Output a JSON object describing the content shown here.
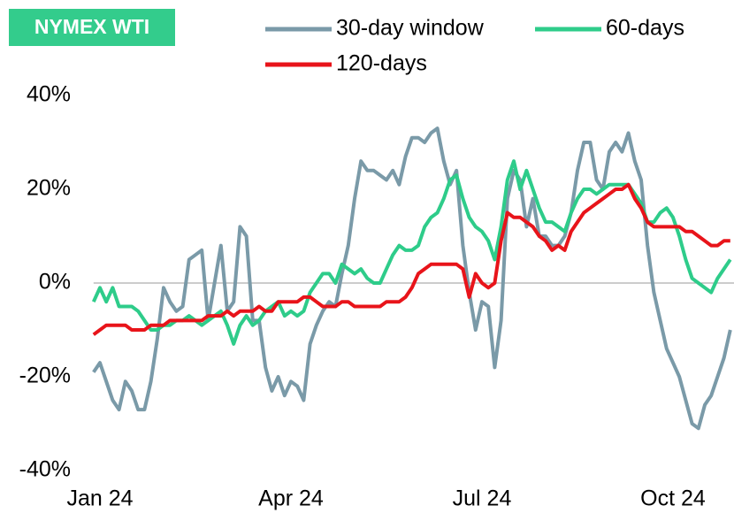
{
  "chart_data": {
    "type": "line",
    "title": "NYMEX WTI",
    "categories": [
      null,
      "Jan 24",
      null,
      null,
      null,
      null,
      null,
      null,
      null,
      null,
      null,
      null,
      null,
      null,
      null,
      null,
      null,
      null,
      null,
      null,
      null,
      null,
      null,
      null,
      null,
      null,
      null,
      null,
      null,
      null,
      null,
      "Apr 24",
      null,
      null,
      null,
      null,
      null,
      null,
      null,
      null,
      null,
      null,
      null,
      null,
      null,
      null,
      null,
      null,
      null,
      null,
      null,
      null,
      null,
      null,
      null,
      null,
      null,
      null,
      null,
      null,
      null,
      "Jul 24",
      null,
      null,
      null,
      null,
      null,
      null,
      null,
      null,
      null,
      null,
      null,
      null,
      null,
      null,
      null,
      null,
      null,
      null,
      null,
      null,
      null,
      null,
      null,
      null,
      null,
      null,
      null,
      null,
      null,
      "Oct 24",
      null,
      null,
      null,
      null,
      null,
      null,
      null,
      null,
      null
    ],
    "series": [
      {
        "name": "30-day window",
        "color": "#7a9aa8",
        "values": [
          -19,
          -17,
          -21,
          -25,
          -27,
          -21,
          -23,
          -27,
          -27,
          -21,
          -12,
          -1,
          -4,
          -6,
          -5,
          5,
          6,
          7,
          -8,
          0,
          8,
          -6,
          -4,
          12,
          10,
          -8,
          -8,
          -18,
          -23,
          -20,
          -24,
          -21,
          -22,
          -25,
          -13,
          -9,
          -6,
          -4,
          -5,
          2,
          8,
          18,
          26,
          24,
          24,
          23,
          22,
          24,
          21,
          27,
          31,
          31,
          30,
          32,
          33,
          26,
          21,
          24,
          8,
          -2,
          -10,
          -4,
          -5,
          -18,
          -8,
          18,
          24,
          22,
          12,
          18,
          10,
          10,
          8,
          8,
          10,
          15,
          24,
          30,
          30,
          22,
          20,
          28,
          30,
          28,
          32,
          26,
          22,
          8,
          -2,
          -8,
          -14,
          -17,
          -20,
          -25,
          -30,
          -31,
          -26,
          -24,
          -20,
          -16,
          -10
        ]
      },
      {
        "name": "60-days",
        "color": "#2ecc8a",
        "values": [
          -4,
          -1,
          -4,
          -1,
          -5,
          -5,
          -5,
          -6,
          -8,
          -10,
          -10,
          -9,
          -9,
          -8,
          -8,
          -7,
          -8,
          -9,
          -8,
          -7,
          -6,
          -9,
          -13,
          -9,
          -7,
          -9,
          -8,
          -6,
          -5,
          -4,
          -7,
          -6,
          -7,
          -6,
          -2,
          0,
          2,
          2,
          0,
          4,
          3,
          2,
          3,
          1,
          0,
          0,
          3,
          6,
          8,
          7,
          7,
          8,
          12,
          14,
          15,
          18,
          22,
          23,
          18,
          14,
          12,
          11,
          9,
          5,
          12,
          22,
          26,
          20,
          24,
          20,
          16,
          13,
          13,
          12,
          11,
          15,
          18,
          20,
          20,
          19,
          20,
          21,
          21,
          21,
          21,
          19,
          17,
          13,
          13,
          15,
          16,
          14,
          10,
          5,
          1,
          0,
          -1,
          -2,
          1,
          3,
          5
        ]
      },
      {
        "name": "120-days",
        "color": "#e8141a",
        "values": [
          -11,
          -10,
          -9,
          -9,
          -9,
          -9,
          -10,
          -10,
          -10,
          -9,
          -9,
          -9,
          -8,
          -8,
          -8,
          -8,
          -8,
          -8,
          -7,
          -7,
          -7,
          -6,
          -7,
          -6,
          -6,
          -6,
          -5,
          -6,
          -6,
          -4,
          -4,
          -4,
          -4,
          -3,
          -3,
          -4,
          -5,
          -5,
          -5,
          -4,
          -4,
          -5,
          -5,
          -5,
          -5,
          -5,
          -4,
          -4,
          -4,
          -3,
          -1,
          2,
          3,
          4,
          4,
          4,
          4,
          4,
          3,
          -3,
          2,
          0,
          -1,
          0,
          9,
          15,
          14,
          14,
          13,
          12,
          10,
          9,
          7,
          8,
          7,
          11,
          13,
          15,
          16,
          17,
          18,
          19,
          20,
          20,
          21,
          18,
          16,
          13,
          12,
          12,
          12,
          12,
          12,
          11,
          11,
          10,
          9,
          8,
          8,
          9,
          9
        ]
      }
    ],
    "ylim": [
      -40,
      40
    ],
    "yticks": [
      {
        "value": -40,
        "label": "-40%"
      },
      {
        "value": -20,
        "label": "-20%"
      },
      {
        "value": 0,
        "label": "0%"
      },
      {
        "value": 20,
        "label": "20%"
      },
      {
        "value": 40,
        "label": "40%"
      }
    ]
  }
}
